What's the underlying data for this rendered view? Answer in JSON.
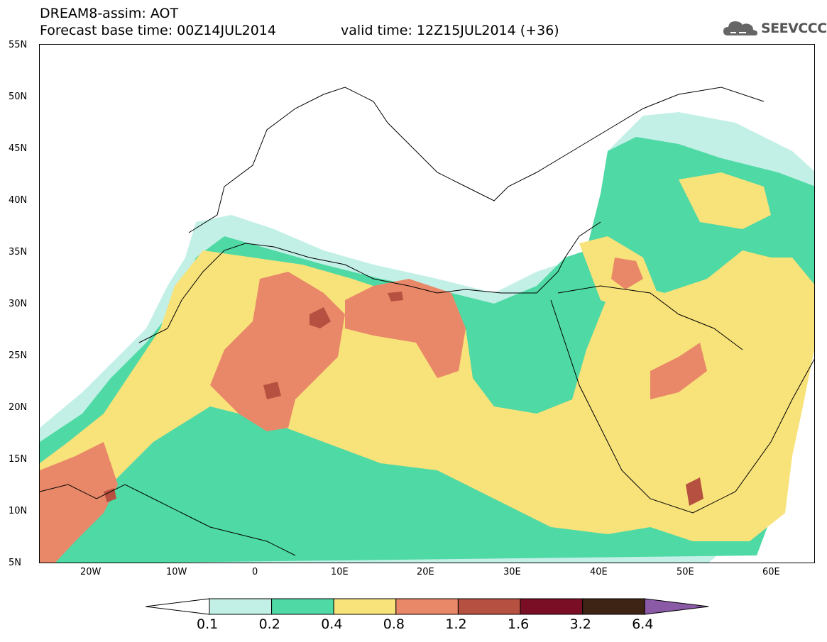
{
  "header": {
    "title": "DREAM8-assim: AOT",
    "base_time": "Forecast base time: 00Z14JUL2014",
    "valid_time": "valid time: 12Z15JUL2014 (+36)"
  },
  "logo": {
    "text": "SEEVCCC",
    "icon": "cloud-icon"
  },
  "map": {
    "lat_labels": [
      "55N",
      "50N",
      "45N",
      "40N",
      "35N",
      "30N",
      "25N",
      "20N",
      "15N",
      "10N",
      "5N"
    ],
    "lon_labels": [
      "20W",
      "10W",
      "0",
      "10E",
      "20E",
      "30E",
      "40E",
      "50E",
      "60E"
    ],
    "extent": {
      "lon": [
        -25,
        65
      ],
      "lat": [
        5,
        55
      ]
    }
  },
  "colorbar": {
    "levels": [
      "0.1",
      "0.2",
      "0.4",
      "0.8",
      "1.2",
      "1.6",
      "3.2",
      "6.4"
    ],
    "colors": [
      "#ffffff",
      "#c2f0e6",
      "#4fd9a5",
      "#f8e27a",
      "#e98868",
      "#b65040",
      "#7a0e25",
      "#3d2414",
      "#8a5aa6"
    ]
  }
}
